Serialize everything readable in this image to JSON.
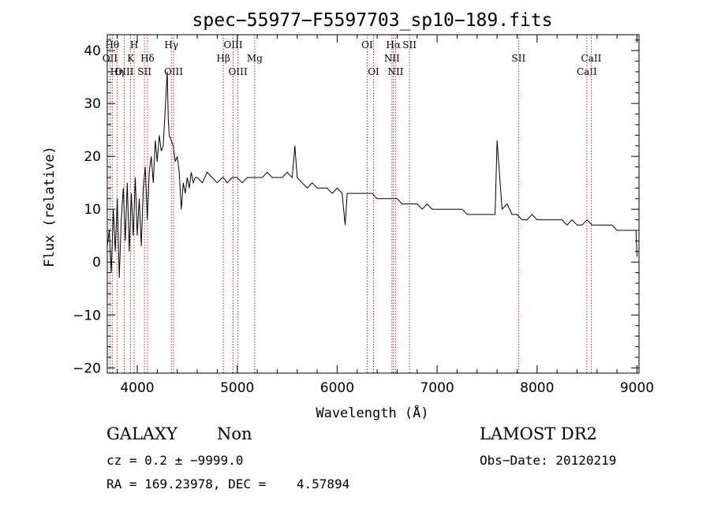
{
  "chart_data": {
    "type": "line",
    "title": "spec−55977−F5597703_sp10−189.fits",
    "xlabel": "Wavelength (Å)",
    "ylabel": "Flux (relative)",
    "xlim": [
      3700,
      9020
    ],
    "ylim": [
      -21,
      43
    ],
    "xticks": [
      {
        "value": 4000,
        "label": "4000"
      },
      {
        "value": 5000,
        "label": "5000"
      },
      {
        "value": 6000,
        "label": "6000"
      },
      {
        "value": 7000,
        "label": "7000"
      },
      {
        "value": 8000,
        "label": "8000"
      },
      {
        "value": 9000,
        "label": "9000"
      }
    ],
    "yticks": [
      {
        "value": 40,
        "label": "40"
      },
      {
        "value": 30,
        "label": "30"
      },
      {
        "value": 20,
        "label": "20"
      },
      {
        "value": 10,
        "label": "10"
      },
      {
        "value": 0,
        "label": "0"
      },
      {
        "value": -10,
        "label": "−10"
      },
      {
        "value": -20,
        "label": "−20"
      }
    ],
    "spectrum": {
      "name": "flux",
      "x": [
        3700,
        3720,
        3740,
        3760,
        3780,
        3800,
        3820,
        3840,
        3860,
        3880,
        3900,
        3920,
        3940,
        3960,
        3980,
        4000,
        4020,
        4040,
        4060,
        4080,
        4100,
        4120,
        4140,
        4160,
        4180,
        4200,
        4220,
        4240,
        4260,
        4280,
        4300,
        4310,
        4320,
        4340,
        4360,
        4380,
        4400,
        4420,
        4440,
        4460,
        4480,
        4500,
        4520,
        4540,
        4560,
        4580,
        4600,
        4650,
        4700,
        4750,
        4800,
        4850,
        4861,
        4900,
        4950,
        5000,
        5050,
        5100,
        5150,
        5200,
        5250,
        5300,
        5350,
        5400,
        5450,
        5500,
        5550,
        5577,
        5600,
        5650,
        5700,
        5750,
        5800,
        5850,
        5900,
        5950,
        6000,
        6050,
        6080,
        6100,
        6150,
        6200,
        6250,
        6300,
        6350,
        6400,
        6450,
        6500,
        6550,
        6600,
        6650,
        6700,
        6750,
        6800,
        6850,
        6900,
        6950,
        7000,
        7050,
        7100,
        7150,
        7200,
        7250,
        7300,
        7350,
        7400,
        7450,
        7500,
        7550,
        7580,
        7600,
        7650,
        7700,
        7750,
        7800,
        7850,
        7900,
        7950,
        8000,
        8050,
        8100,
        8150,
        8200,
        8250,
        8300,
        8350,
        8400,
        8450,
        8500,
        8550,
        8600,
        8650,
        8700,
        8750,
        8800,
        8850,
        8900,
        8950,
        8990,
        9000
      ],
      "y": [
        3,
        6,
        -2,
        10,
        2,
        12,
        -3,
        8,
        14,
        4,
        15,
        2,
        13,
        5,
        16,
        5,
        12,
        3,
        14,
        18,
        8,
        17,
        20,
        15,
        23,
        19,
        24,
        21,
        22,
        29,
        36,
        27,
        24,
        23,
        22,
        19,
        20,
        17,
        10,
        15,
        13,
        16,
        14,
        17,
        15,
        16,
        16,
        15,
        17,
        16,
        15,
        16,
        16,
        15,
        16,
        16,
        15,
        16,
        16,
        16,
        16,
        17,
        16,
        16,
        16,
        17,
        16,
        22,
        16,
        15,
        14,
        15,
        14,
        14,
        14,
        13,
        14,
        13,
        7,
        13,
        13,
        13,
        13,
        13,
        13,
        12,
        12,
        12,
        12,
        12,
        11,
        11,
        11,
        11,
        10,
        11,
        10,
        10,
        10,
        10,
        10,
        10,
        10,
        9,
        9,
        9,
        9,
        9,
        9,
        9,
        23,
        10,
        11,
        9,
        9,
        8,
        8,
        9,
        8,
        8,
        8,
        8,
        8,
        8,
        7,
        8,
        7,
        7,
        8,
        7,
        7,
        7,
        7,
        7,
        6,
        6,
        6,
        6,
        6,
        1
      ]
    },
    "emission_lines": [
      {
        "x": 3727,
        "label": "OII",
        "row": 2
      },
      {
        "x": 3750,
        "label": "Hθ",
        "row": 1
      },
      {
        "x": 3798,
        "label": "Hη",
        "row": 3
      },
      {
        "x": 3869,
        "label": "OIII",
        "row": 3
      },
      {
        "x": 3934,
        "label": "K",
        "row": 2
      },
      {
        "x": 3969,
        "label": "H",
        "row": 1
      },
      {
        "x": 4072,
        "label": "SII",
        "row": 3
      },
      {
        "x": 4102,
        "label": "Hδ",
        "row": 2
      },
      {
        "x": 4341,
        "label": "Hγ",
        "row": 1
      },
      {
        "x": 4363,
        "label": "OIII",
        "row": 3
      },
      {
        "x": 4861,
        "label": "Hβ",
        "row": 2
      },
      {
        "x": 4959,
        "label": "OIII",
        "row": 1
      },
      {
        "x": 5007,
        "label": "OIII",
        "row": 3
      },
      {
        "x": 5175,
        "label": "Mg",
        "row": 2
      },
      {
        "x": 6300,
        "label": "OI",
        "row": 1
      },
      {
        "x": 6364,
        "label": "OI",
        "row": 3
      },
      {
        "x": 6548,
        "label": "NII",
        "row": 2
      },
      {
        "x": 6563,
        "label": "Hα",
        "row": 1
      },
      {
        "x": 6584,
        "label": "NII",
        "row": 3
      },
      {
        "x": 6724,
        "label": "SII",
        "row": 1
      },
      {
        "x": 7815,
        "label": "SII",
        "row": 2
      },
      {
        "x": 8498,
        "label": "CaII",
        "row": 3
      },
      {
        "x": 8542,
        "label": "CaII",
        "row": 2
      }
    ]
  },
  "info": {
    "object_class": "GALAXY",
    "subclass": "Non",
    "survey": "LAMOST DR2",
    "cz": "cz = 0.2 ± −9999.0",
    "obs_date": "Obs−Date: 20120219",
    "coords": "RA = 169.23978, DEC =    4.57894"
  },
  "colors": {
    "line_marker": "#b03030",
    "spectrum": "#000000",
    "axis": "#000000"
  }
}
